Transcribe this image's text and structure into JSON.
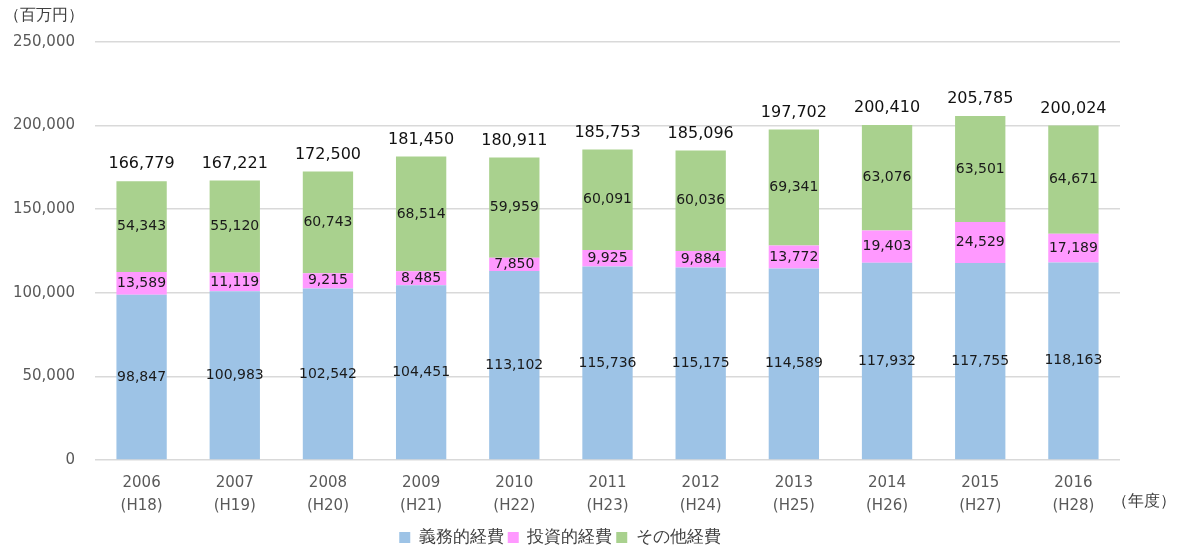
{
  "chart_data": {
    "type": "bar",
    "stacked": true,
    "ylabel": "（百万円）",
    "xlabel": "（年度）",
    "categories": [
      "2006\n(H18)",
      "2007\n(H19)",
      "2008\n(H20)",
      "2009\n(H21)",
      "2010\n(H22)",
      "2011\n(H23)",
      "2012\n(H24)",
      "2013\n(H25)",
      "2014\n(H26)",
      "2015\n(H27)",
      "2016\n(H28)"
    ],
    "series": [
      {
        "name": "義務的経費",
        "color": "#9dc3e6",
        "values": [
          98847,
          100983,
          102542,
          104451,
          113102,
          115736,
          115175,
          114589,
          117932,
          117755,
          118163
        ],
        "value_labels": [
          "98,847",
          "100,983",
          "102,542",
          "104,451",
          "113,102",
          "115,736",
          "115,175",
          "114,589",
          "117,932",
          "117,755",
          "118,163"
        ]
      },
      {
        "name": "投資的経費",
        "color": "#ff99ff",
        "values": [
          13589,
          11119,
          9215,
          8485,
          7850,
          9925,
          9884,
          13772,
          19403,
          24529,
          17189
        ],
        "value_labels": [
          "13,589",
          "11,119",
          "9,215",
          "8,485",
          "7,850",
          "9,925",
          "9,884",
          "13,772",
          "19,403",
          "24,529",
          "17,189"
        ]
      },
      {
        "name": "その他経費",
        "color": "#a9d18e",
        "values": [
          54343,
          55120,
          60743,
          68514,
          59959,
          60091,
          60036,
          69341,
          63076,
          63501,
          64671
        ],
        "value_labels": [
          "54,343",
          "55,120",
          "60,743",
          "68,514",
          "59,959",
          "60,091",
          "60,036",
          "69,341",
          "63,076",
          "63,501",
          "64,671"
        ]
      }
    ],
    "totals": [
      "166,779",
      "167,221",
      "172,500",
      "181,450",
      "180,911",
      "185,753",
      "185,096",
      "197,702",
      "200,410",
      "205,785",
      "200,024"
    ],
    "ylim": [
      0,
      250000
    ],
    "yticks": [
      0,
      {
        "value": 50000,
        "label": "50,000"
      },
      {
        "value": 100000,
        "label": "100,000"
      },
      {
        "value": 150000,
        "label": "150,000"
      },
      {
        "value": 200000,
        "label": "200,000"
      },
      {
        "value": 250000,
        "label": "250,000"
      }
    ],
    "grid": "y",
    "legend": "bottom"
  }
}
